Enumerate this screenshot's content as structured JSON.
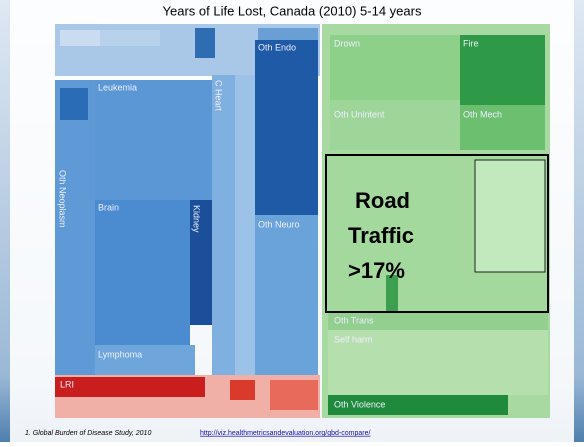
{
  "slide": {
    "title": "Years of Life Lost, Canada (2010) 5-14 years",
    "cells": [
      "Leukemia",
      "Oth Neoplasm",
      "Brain",
      "Kidney",
      "Lymphoma",
      "C Heart",
      "Oth Endo",
      "Oth Neuro",
      "LRI",
      "Drown",
      "Fire",
      "Oth Unintent",
      "Oth Mech",
      "Oth Trans",
      "Self harm",
      "Oth Violence"
    ],
    "callout": [
      "Road",
      "Traffic",
      ">17%"
    ],
    "footnote": "1. Global Burden of Disease Study, 2010",
    "link": "http://viz.healthmetricsandevaluation.org/gbd-compare/"
  }
}
